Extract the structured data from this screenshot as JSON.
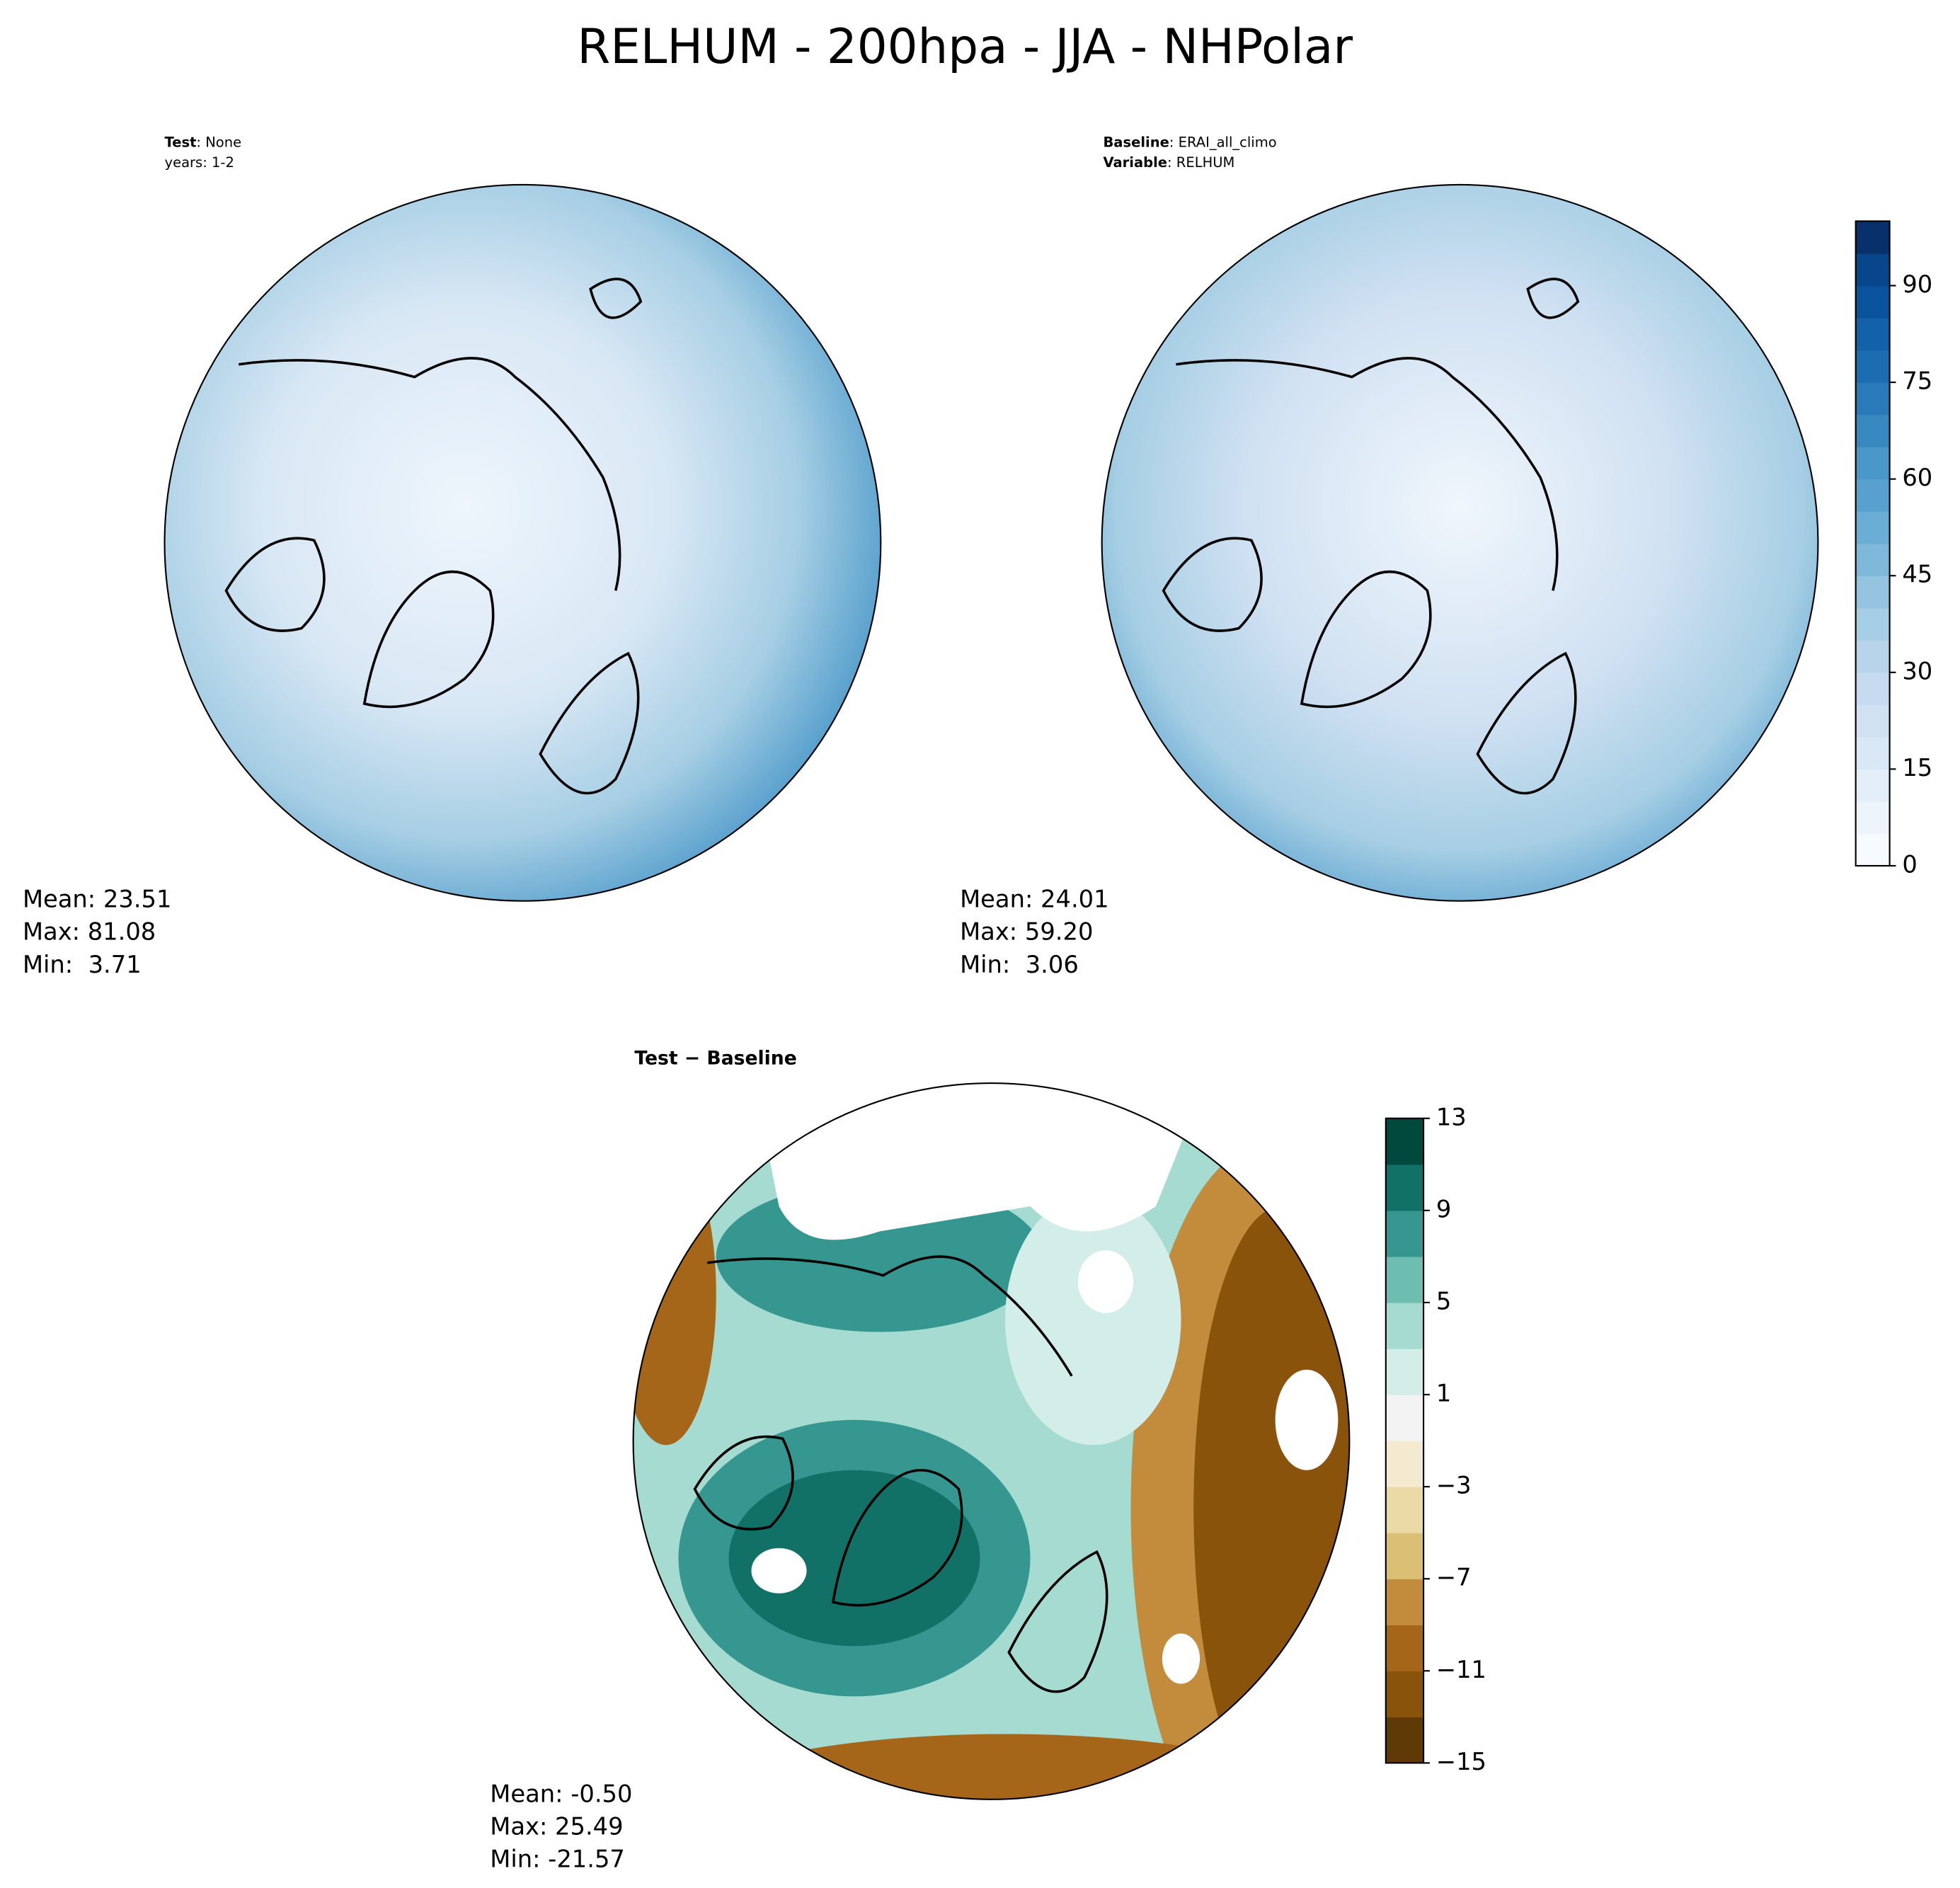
{
  "title": "RELHUM - 200hpa - JJA - NHPolar",
  "chart_data": [
    {
      "type": "map",
      "annotations": [
        {
          "bold": "Test",
          "text": ": None"
        },
        {
          "text": "years: 1-2"
        }
      ],
      "stats": [
        "Mean: 23.51",
        "Max: 81.08",
        "Min:  3.71"
      ]
    },
    {
      "type": "map",
      "annotations": [
        {
          "bold": "Baseline",
          "text": ": ERAI_all_climo"
        },
        {
          "bold": "Variable",
          "text": ": RELHUM"
        }
      ],
      "stats": [
        "Mean: 24.01",
        "Max: 59.20",
        "Min:  3.06"
      ],
      "colorbar": {
        "lim": [
          0,
          100
        ],
        "levels": [
          0,
          5,
          10,
          15,
          20,
          25,
          30,
          35,
          40,
          45,
          50,
          55,
          60,
          65,
          70,
          75,
          80,
          85,
          90,
          95,
          100
        ],
        "colors": [
          "#f7fbff",
          "#edf4fc",
          "#e3eef9",
          "#d9e8f5",
          "#d0e1f2",
          "#c6dbef",
          "#b7d4ea",
          "#a6cee4",
          "#94c4df",
          "#7fb9da",
          "#6aaed6",
          "#58a1cf",
          "#4a98c9",
          "#3989c1",
          "#2a7ab9",
          "#1c6cb1",
          "#1361a9",
          "#09539d",
          "#08468b",
          "#08306b"
        ],
        "ticks": [
          0,
          15,
          30,
          45,
          60,
          75,
          90
        ]
      }
    },
    {
      "type": "map",
      "title": "Test − Baseline",
      "stats": [
        "Mean: -0.50",
        "Max: 25.49",
        "Min: -21.57"
      ],
      "colorbar": {
        "lim": [
          -15,
          13
        ],
        "levels": [
          -15,
          -13,
          -11,
          -9,
          -7,
          -5,
          -3,
          -1,
          1,
          3,
          5,
          7,
          9,
          11,
          13
        ],
        "colors": [
          "#5f3a06",
          "#8a530b",
          "#a6661a",
          "#c38c3d",
          "#dbbf74",
          "#ebd9a6",
          "#f4ead0",
          "#f2f3f2",
          "#d3ede9",
          "#a5dbd0",
          "#6ebdb1",
          "#35978f",
          "#117166",
          "#01493d"
        ],
        "ticks": [
          {
            "value": -15,
            "label": "−15"
          },
          {
            "value": -11,
            "label": "−11"
          },
          {
            "value": -7,
            "label": "−7"
          },
          {
            "value": -3,
            "label": "−3"
          },
          1,
          5,
          9,
          13
        ]
      }
    }
  ]
}
